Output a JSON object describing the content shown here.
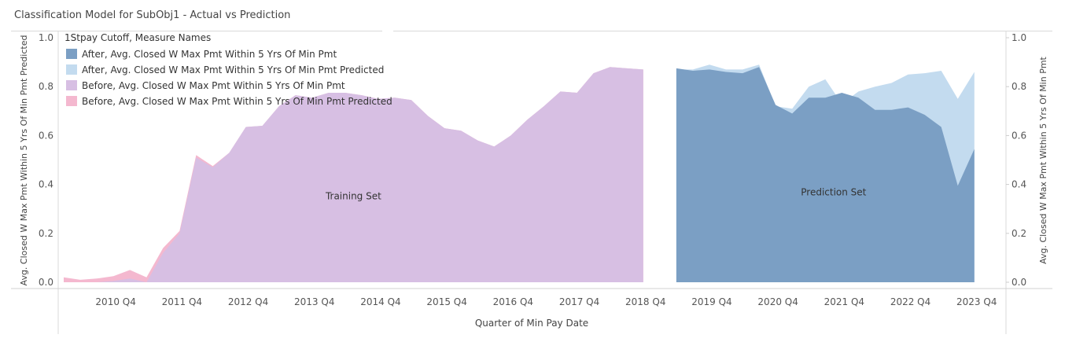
{
  "title": "Classification Model for SubObj1 - Actual vs Prediction",
  "chart_data": {
    "type": "area",
    "xlabel": "Quarter of Min Pay Date",
    "ylabel_left": "Avg. Closed W Max Pmt Within 5 Yrs Of Min Pmt Predicted",
    "ylabel_right": "Avg. Closed W Max Pmt Within 5 Yrs Of Min Pmt",
    "ylim": [
      0,
      1
    ],
    "y_ticks": [
      "0.0",
      "0.2",
      "0.4",
      "0.6",
      "0.8",
      "1.0"
    ],
    "x_ticks": [
      {
        "label": "2010 Q4",
        "q": 3
      },
      {
        "label": "2011 Q4",
        "q": 7
      },
      {
        "label": "2012 Q4",
        "q": 11
      },
      {
        "label": "2013 Q4",
        "q": 15
      },
      {
        "label": "2014 Q4",
        "q": 19
      },
      {
        "label": "2015 Q4",
        "q": 23
      },
      {
        "label": "2016 Q4",
        "q": 27
      },
      {
        "label": "2017 Q4",
        "q": 31
      },
      {
        "label": "2018 Q4",
        "q": 35
      },
      {
        "label": "2019 Q4",
        "q": 39
      },
      {
        "label": "2020 Q4",
        "q": 43
      },
      {
        "label": "2021 Q4",
        "q": 47
      },
      {
        "label": "2022 Q4",
        "q": 51
      },
      {
        "label": "2023 Q4",
        "q": 55
      }
    ],
    "legend": {
      "title": "1Stpay Cutoff, Measure Names",
      "position": "top-left",
      "entries": [
        {
          "name": "After, Avg. Closed W Max Pmt Within 5 Yrs Of Min Pmt",
          "color": "#7b9fc4"
        },
        {
          "name": "After, Avg. Closed W Max Pmt Within 5 Yrs Of Min Pmt Predicted",
          "color": "#c3dbef"
        },
        {
          "name": "Before, Avg. Closed W Max Pmt Within 5 Yrs Of Min Pmt",
          "color": "#d7bfe3"
        },
        {
          "name": "Before, Avg. Closed W Max Pmt Within 5 Yrs Of Min Pmt Predicted",
          "color": "#f4b8cf"
        }
      ]
    },
    "annotations": [
      {
        "text": "Training Set",
        "q": 17.5,
        "y": 0.34
      },
      {
        "text": "Prediction Set",
        "q": 46.5,
        "y": 0.355
      }
    ],
    "series": [
      {
        "name": "Before, Avg. Closed W Max Pmt Within 5 Yrs Of Min Pmt Predicted",
        "color": "#f4b8cf",
        "q_start": 0,
        "values": [
          0.02,
          0.01,
          0.015,
          0.025,
          0.05,
          0.02,
          0.14,
          0.21,
          0.52,
          0.475,
          0.53,
          0.635,
          0.64,
          0.72,
          0.765,
          0.755,
          0.775,
          0.775,
          0.765,
          0.75,
          0.755,
          0.745,
          0.68,
          0.63,
          0.62,
          0.58,
          0.555,
          0.6,
          0.665,
          0.72,
          0.78,
          0.775,
          0.855,
          0.88,
          0.875,
          0.87
        ]
      },
      {
        "name": "Before, Avg. Closed W Max Pmt Within 5 Yrs Of Min Pmt",
        "color": "#d7bfe3",
        "q_start": 0,
        "values": [
          0.0,
          0.0,
          0.0,
          0.005,
          0.015,
          0.0,
          0.12,
          0.2,
          0.51,
          0.47,
          0.53,
          0.635,
          0.64,
          0.72,
          0.765,
          0.755,
          0.775,
          0.775,
          0.765,
          0.75,
          0.755,
          0.745,
          0.68,
          0.63,
          0.62,
          0.58,
          0.555,
          0.6,
          0.665,
          0.72,
          0.78,
          0.775,
          0.855,
          0.88,
          0.875,
          0.87
        ]
      },
      {
        "name": "After, Avg. Closed W Max Pmt Within 5 Yrs Of Min Pmt Predicted",
        "color": "#c3dbef",
        "q_start": 37,
        "values": [
          0.87,
          0.87,
          0.89,
          0.87,
          0.87,
          0.89,
          0.72,
          0.71,
          0.8,
          0.83,
          0.73,
          0.78,
          0.8,
          0.815,
          0.85,
          0.855,
          0.865,
          0.75,
          0.86
        ]
      },
      {
        "name": "After, Avg. Closed W Max Pmt Within 5 Yrs Of Min Pmt",
        "color": "#7b9fc4",
        "q_start": 37,
        "values": [
          0.875,
          0.865,
          0.87,
          0.86,
          0.855,
          0.88,
          0.725,
          0.69,
          0.755,
          0.755,
          0.775,
          0.755,
          0.705,
          0.705,
          0.715,
          0.685,
          0.635,
          0.395,
          0.545
        ]
      }
    ]
  }
}
